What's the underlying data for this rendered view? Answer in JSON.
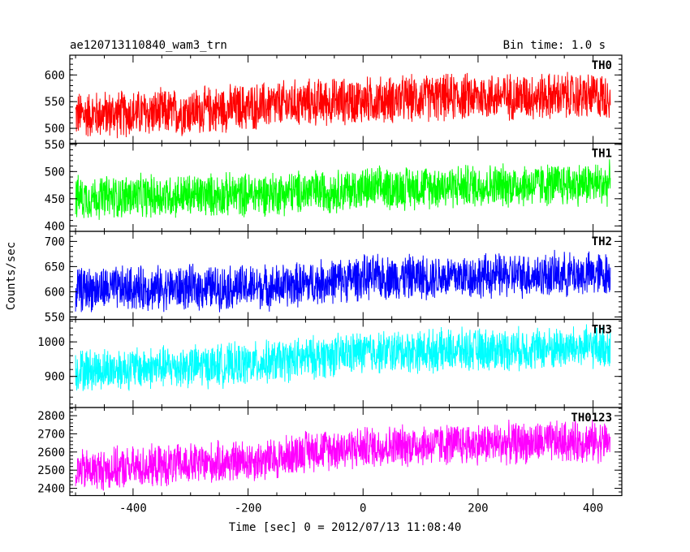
{
  "chart_data": {
    "type": "line",
    "title": "ae120713110840_wam3_trn",
    "bin_time_label": "Bin time: 1.0 s",
    "xlabel": "Time [sec] 0 = 2012/07/13 11:08:40",
    "ylabel": "Counts/sec",
    "xlim": [
      -510,
      450
    ],
    "x_range": [
      -500,
      430
    ],
    "x_ticks": [
      -400,
      -200,
      0,
      200,
      400
    ],
    "grid": false,
    "panels": [
      {
        "name": "TH0",
        "color": "#ff0000",
        "ylim": [
          472,
          637
        ],
        "y_ticks": [
          500,
          550,
          600
        ],
        "trend_points": [
          [
            -500,
            525
          ],
          [
            -320,
            530
          ],
          [
            -100,
            548
          ],
          [
            200,
            560
          ],
          [
            430,
            560
          ]
        ],
        "noise_half_range": 50
      },
      {
        "name": "TH1",
        "color": "#00ff00",
        "ylim": [
          390,
          552
        ],
        "y_ticks": [
          400,
          450,
          500,
          550
        ],
        "trend_points": [
          [
            -500,
            452
          ],
          [
            -200,
            458
          ],
          [
            100,
            472
          ],
          [
            430,
            478
          ]
        ],
        "noise_half_range": 45
      },
      {
        "name": "TH2",
        "color": "#0000ff",
        "ylim": [
          545,
          720
        ],
        "y_ticks": [
          550,
          600,
          650,
          700
        ],
        "trend_points": [
          [
            -500,
            605
          ],
          [
            -150,
            610
          ],
          [
            0,
            628
          ],
          [
            430,
            635
          ]
        ],
        "noise_half_range": 50
      },
      {
        "name": "TH3",
        "color": "#00ffff",
        "ylim": [
          810,
          1065
        ],
        "y_ticks": [
          900,
          1000
        ],
        "trend_points": [
          [
            -500,
            918
          ],
          [
            -200,
            935
          ],
          [
            0,
            970
          ],
          [
            430,
            985
          ]
        ],
        "noise_half_range": 70
      },
      {
        "name": "TH0123",
        "color": "#ff00ff",
        "ylim": [
          2360,
          2845
        ],
        "y_ticks": [
          2400,
          2500,
          2600,
          2700,
          2800
        ],
        "trend_points": [
          [
            -500,
            2495
          ],
          [
            -150,
            2560
          ],
          [
            -100,
            2610
          ],
          [
            100,
            2640
          ],
          [
            430,
            2660
          ]
        ],
        "noise_half_range": 130
      }
    ]
  }
}
